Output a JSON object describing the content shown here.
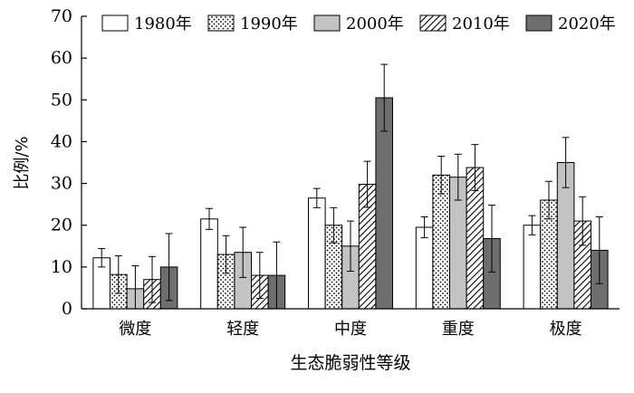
{
  "chart_data": {
    "type": "bar",
    "title": "",
    "xlabel": "生态脆弱性等级",
    "ylabel": "比例/%",
    "ylim": [
      0,
      70
    ],
    "yticks": [
      0,
      10,
      20,
      30,
      40,
      50,
      60,
      70
    ],
    "grid": false,
    "legend_position": "top",
    "categories": [
      "微度",
      "轻度",
      "中度",
      "重度",
      "极度"
    ],
    "series": [
      {
        "name": "1980年",
        "fill": "white",
        "values": [
          12.2,
          21.5,
          26.5,
          19.5,
          20.0
        ],
        "errors": [
          2.2,
          2.5,
          2.3,
          2.5,
          2.3
        ]
      },
      {
        "name": "1990年",
        "fill": "dots",
        "values": [
          8.2,
          13.0,
          20.0,
          32.0,
          26.0
        ],
        "errors": [
          4.5,
          4.5,
          4.2,
          4.5,
          4.5
        ]
      },
      {
        "name": "2000年",
        "fill": "#c3c3c3",
        "values": [
          4.8,
          13.5,
          15.0,
          31.5,
          35.0
        ],
        "errors": [
          5.5,
          6.0,
          6.0,
          5.5,
          6.0
        ]
      },
      {
        "name": "2010年",
        "fill": "hatch",
        "values": [
          7.0,
          8.0,
          29.8,
          33.8,
          21.0
        ],
        "errors": [
          5.5,
          5.5,
          5.5,
          5.5,
          5.8
        ]
      },
      {
        "name": "2020年",
        "fill": "#6e6e6e",
        "values": [
          10.0,
          8.0,
          50.5,
          16.8,
          14.0
        ],
        "errors": [
          8.0,
          8.0,
          8.0,
          8.0,
          8.0
        ]
      }
    ]
  }
}
